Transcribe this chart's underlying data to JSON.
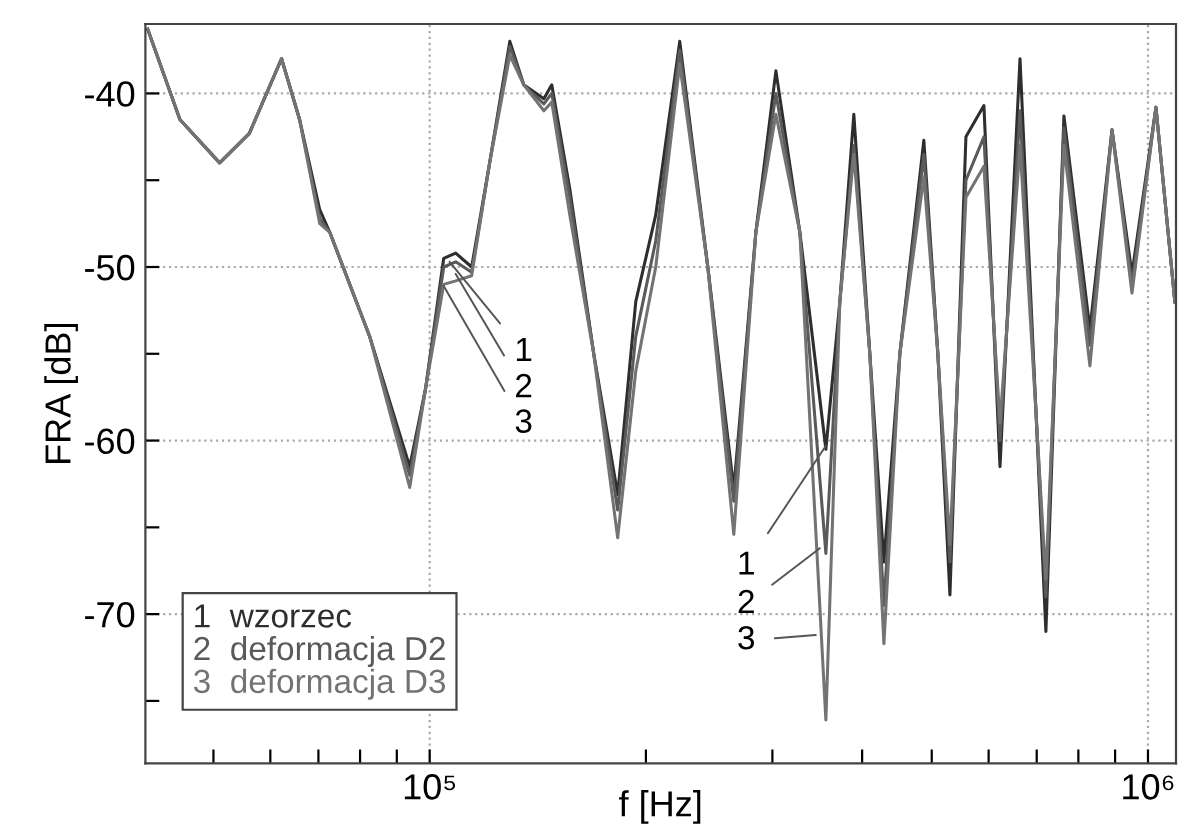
{
  "chart_data": {
    "type": "line",
    "xlabel": "f [Hz]",
    "ylabel": "FRA [dB]",
    "log": "x",
    "grid": true,
    "legend": "bottom left",
    "line_style": "solid",
    "marker": "none",
    "xlim": [
      40200,
      1094000
    ],
    "ylim": [
      -78.6,
      -36
    ],
    "xticks": [
      {
        "value": 50000,
        "label": null
      },
      {
        "value": 60000,
        "label": null
      },
      {
        "value": 70000,
        "label": null
      },
      {
        "value": 80000,
        "label": null
      },
      {
        "value": 90000,
        "label": null
      },
      {
        "value": 100000,
        "label": "10⁵"
      },
      {
        "value": 200000,
        "label": null
      },
      {
        "value": 300000,
        "label": null
      },
      {
        "value": 400000,
        "label": null
      },
      {
        "value": 500000,
        "label": null
      },
      {
        "value": 600000,
        "label": null
      },
      {
        "value": 700000,
        "label": null
      },
      {
        "value": 800000,
        "label": null
      },
      {
        "value": 900000,
        "label": null
      },
      {
        "value": 1000000,
        "label": "10⁶"
      }
    ],
    "yticks": [
      -40,
      {
        "value": -45,
        "label": null
      },
      -50,
      {
        "value": -55,
        "label": null
      },
      -60,
      {
        "value": -65,
        "label": null
      },
      -70,
      {
        "value": -75,
        "label": null
      }
    ],
    "x": [
      40500,
      44900,
      51000,
      56100,
      62200,
      65900,
      70300,
      72600,
      82500,
      93800,
      98700,
      104600,
      108700,
      114400,
      121200,
      129300,
      135200,
      144200,
      147900,
      156700,
      169200,
      182700,
      193600,
      206400,
      222900,
      243900,
      265100,
      284500,
      303400,
      327600,
      356100,
      372400,
      389500,
      410000,
      428900,
      451400,
      487500,
      509900,
      530000,
      557900,
      591000,
      622300,
      663500,
      720900,
      763800,
      830200,
      891200,
      950000,
      1025900,
      1090000
    ],
    "series": [
      {
        "name": "1  wzorzec",
        "color": "#2e2e2e",
        "values": [
          -36.3,
          -41.5,
          -44,
          -42.3,
          -38,
          -41.5,
          -46.7,
          -48,
          -54,
          -61.5,
          -57,
          -49.5,
          -49.2,
          -50,
          -44,
          -37,
          -39.5,
          -40.3,
          -39.5,
          -45.5,
          -55,
          -63.1,
          -52,
          -47,
          -37,
          -50,
          -62.8,
          -48,
          -38.7,
          -48,
          -60.5,
          -52,
          -41.2,
          -55,
          -67,
          -55,
          -42.7,
          -55,
          -68.9,
          -42.5,
          -40.7,
          -61.5,
          -38,
          -71,
          -41.3,
          -53.6,
          -42.1,
          -50.4,
          -40.8,
          -52
        ]
      },
      {
        "name": "2  deformacja D2",
        "color": "#5a5a5a",
        "values": [
          -36.3,
          -41.5,
          -44,
          -42.3,
          -38,
          -41.5,
          -47.2,
          -48,
          -54,
          -62,
          -57,
          -50,
          -49.7,
          -50.3,
          -44,
          -37.3,
          -39.5,
          -40.6,
          -40,
          -46,
          -55,
          -64,
          -54,
          -48.5,
          -37.5,
          -50,
          -63.5,
          -48,
          -40,
          -48,
          -66.5,
          -52,
          -43,
          -55,
          -69.5,
          -55,
          -43.5,
          -55,
          -67,
          -45,
          -42.5,
          -60,
          -41,
          -69,
          -42,
          -54.5,
          -42.1,
          -51,
          -40.8,
          -52
        ]
      },
      {
        "name": "3  deformacja D3",
        "color": "#737373",
        "values": [
          -36.3,
          -41.5,
          -44,
          -42.3,
          -38,
          -41.5,
          -47.5,
          -48,
          -54,
          -62.7,
          -57,
          -51,
          -50.8,
          -50.5,
          -44,
          -37.8,
          -39.5,
          -41,
          -40.5,
          -47,
          -55,
          -65.6,
          -56,
          -50,
          -38.3,
          -50,
          -65.4,
          -48,
          -41.2,
          -48,
          -76.1,
          -52,
          -43.5,
          -55,
          -71.7,
          -55,
          -44.8,
          -55,
          -66,
          -46,
          -44.2,
          -59,
          -43,
          -68,
          -43,
          -55.7,
          -42.1,
          -51.5,
          -40.8,
          -52
        ]
      }
    ],
    "annotations": [
      {
        "text": "1",
        "x": 106600,
        "y": -49.7
      },
      {
        "text": "2",
        "x": 108700,
        "y": -50.4
      },
      {
        "text": "3",
        "x": 104600,
        "y": -51.1
      },
      {
        "text": "1",
        "x": 356100,
        "y": -60.3
      },
      {
        "text": "2",
        "x": 349300,
        "y": -66.2
      },
      {
        "text": "3",
        "x": 344800,
        "y": -71.2
      }
    ]
  }
}
